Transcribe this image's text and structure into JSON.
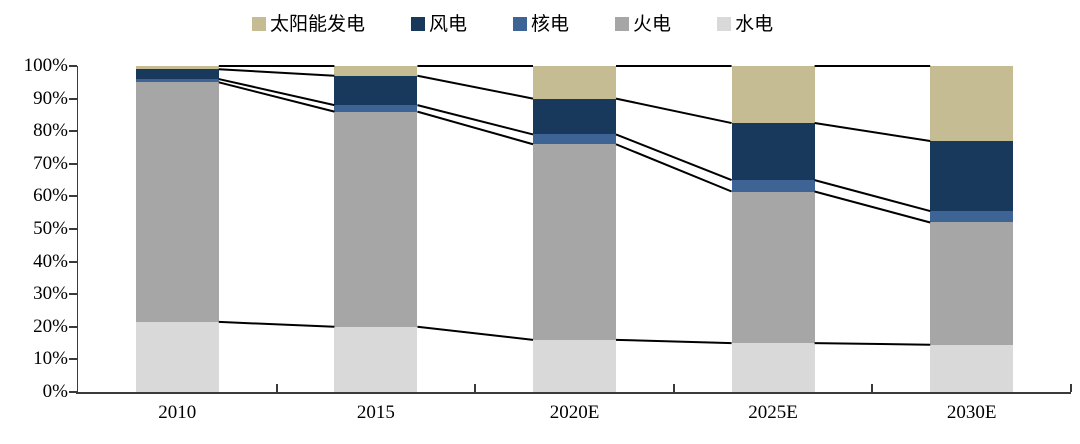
{
  "legend": {
    "items": [
      {
        "label": "太阳能发电",
        "color": "#C5BC93"
      },
      {
        "label": "风电",
        "color": "#18395C"
      },
      {
        "label": "核电",
        "color": "#3E6495"
      },
      {
        "label": "火电",
        "color": "#A6A6A6"
      },
      {
        "label": "水电",
        "color": "#D9D9D9"
      }
    ]
  },
  "y_axis": {
    "tick_labels": [
      "0%",
      "10%",
      "20%",
      "30%",
      "40%",
      "50%",
      "60%",
      "70%",
      "80%",
      "90%",
      "100%"
    ]
  },
  "chart_data": {
    "type": "bar",
    "subtype": "stacked-100",
    "title": "",
    "xlabel": "",
    "ylabel": "",
    "ylim": [
      0,
      100
    ],
    "y_tick_step": 10,
    "grid": false,
    "legend_position": "top",
    "connector_lines": true,
    "categories": [
      "2010",
      "2015",
      "2020E",
      "2025E",
      "2030E"
    ],
    "series": [
      {
        "name": "水电",
        "color": "#D9D9D9",
        "values": [
          21.5,
          20.0,
          16.0,
          15.0,
          14.5
        ]
      },
      {
        "name": "火电",
        "color": "#A6A6A6",
        "values": [
          73.5,
          66.0,
          60.0,
          46.5,
          37.5
        ]
      },
      {
        "name": "核电",
        "color": "#3E6495",
        "values": [
          1.0,
          2.0,
          3.0,
          3.5,
          3.5
        ]
      },
      {
        "name": "风电",
        "color": "#18395C",
        "values": [
          3.0,
          9.0,
          11.0,
          17.5,
          21.5
        ]
      },
      {
        "name": "太阳能发电",
        "color": "#C5BC93",
        "values": [
          1.0,
          3.0,
          10.0,
          17.5,
          23.0
        ]
      }
    ],
    "axis_color": "#3a3a3a",
    "connector_line_color": "#000000"
  }
}
